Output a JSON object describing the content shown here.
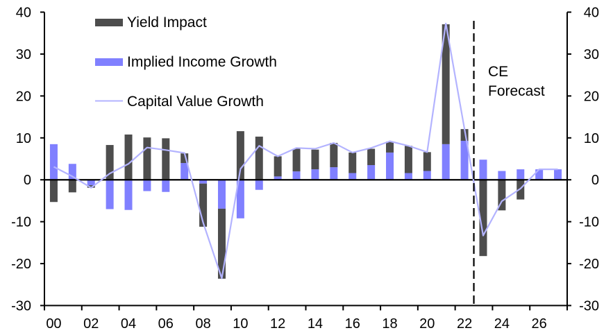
{
  "chart_data": {
    "type": "bar",
    "subtype": "stacked bar with line overlay",
    "title": "",
    "xlabel": "",
    "ylabel": "",
    "ylim": [
      -30,
      40
    ],
    "y_ticks": [
      40,
      30,
      20,
      10,
      0,
      -10,
      -20,
      -30
    ],
    "y2lim": [
      -30,
      40
    ],
    "y2_ticks": [
      40,
      30,
      20,
      10,
      0,
      -10,
      -20,
      -30
    ],
    "grid": false,
    "legend_position": "top-left",
    "categories": [
      "2000",
      "2001",
      "2002",
      "2003",
      "2004",
      "2005",
      "2006",
      "2007",
      "2008",
      "2009",
      "2010",
      "2011",
      "2012",
      "2013",
      "2014",
      "2015",
      "2016",
      "2017",
      "2018",
      "2019",
      "2020",
      "2021",
      "2022",
      "2023",
      "2024",
      "2025",
      "2026",
      "2027"
    ],
    "x_tick_labels": [
      "00",
      "02",
      "04",
      "06",
      "08",
      "10",
      "12",
      "14",
      "16",
      "18",
      "20",
      "22",
      "24",
      "26"
    ],
    "series": [
      {
        "name": "Yield Impact",
        "kind": "bar",
        "color": "#4d4d4d",
        "values": [
          -5.3,
          -3.0,
          -0.6,
          8.3,
          10.8,
          10.1,
          9.9,
          2.3,
          -10.3,
          -16.7,
          11.6,
          10.3,
          4.8,
          5.4,
          4.7,
          5.8,
          4.9,
          3.9,
          2.6,
          6.5,
          4.5,
          28.6,
          2.8,
          -18.2,
          -7.3,
          -4.7,
          0.0,
          0.0
        ]
      },
      {
        "name": "Implied Income Growth",
        "kind": "bar",
        "color": "#8080ff",
        "values": [
          8.5,
          3.8,
          -1.3,
          -7.0,
          -7.2,
          -2.7,
          -2.9,
          4.0,
          -0.9,
          -6.9,
          -9.2,
          -2.4,
          0.8,
          2.0,
          2.5,
          3.0,
          1.6,
          3.5,
          6.5,
          1.6,
          2.1,
          8.5,
          9.3,
          4.8,
          2.1,
          2.5,
          2.5,
          2.5
        ]
      },
      {
        "name": "Capital Value Growth",
        "kind": "line",
        "color": "#b3b3ff",
        "values": [
          3.1,
          0.8,
          -1.9,
          1.5,
          3.8,
          7.7,
          7.1,
          6.4,
          -10.2,
          -23.5,
          2.6,
          8.1,
          5.6,
          7.6,
          7.4,
          8.8,
          6.5,
          7.6,
          9.2,
          8.1,
          6.6,
          37.3,
          12.1,
          -13.3,
          -5.1,
          -2.1,
          2.5,
          2.5
        ]
      }
    ],
    "forecast_divider": {
      "after_category": "2022",
      "style": "dashed",
      "label_lines": [
        "CE",
        "Forecast"
      ]
    }
  }
}
